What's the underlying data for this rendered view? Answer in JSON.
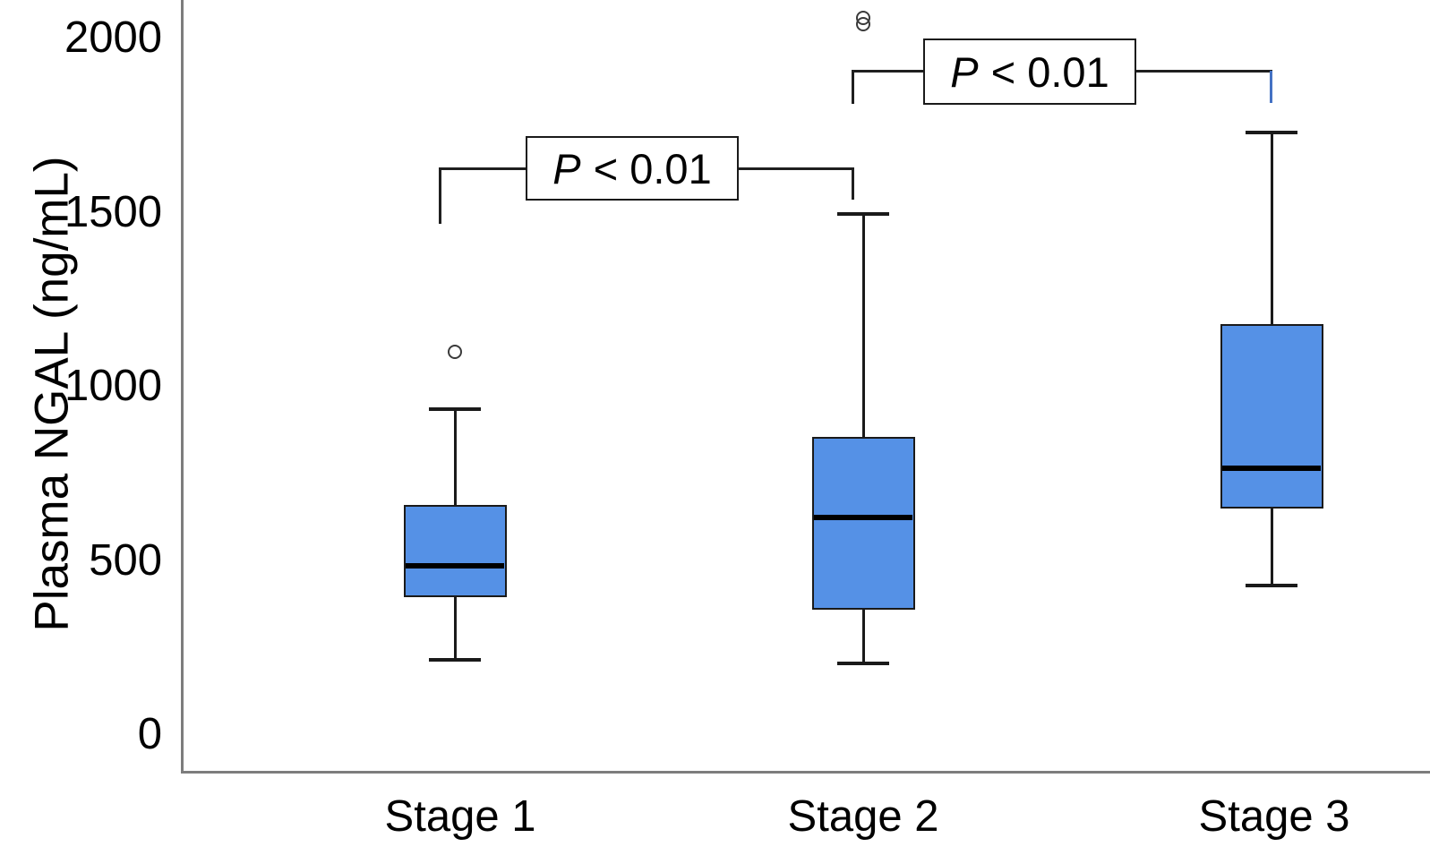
{
  "chart_data": {
    "type": "boxplot",
    "title": "",
    "xlabel": "",
    "ylabel": "Plasma NGAL (ng/mL)",
    "y_unit": "ng/mL",
    "ylim": [
      0,
      2100
    ],
    "y_ticks": [
      2000,
      1500,
      1000,
      500,
      0
    ],
    "grid": false,
    "legend": "none",
    "categories": [
      "Stage 1",
      "Stage 2",
      "Stage 3"
    ],
    "series": [
      {
        "name": "Stage 1",
        "min": 215,
        "q1": 395,
        "median": 485,
        "q3": 660,
        "max": 935,
        "outliers": [
          1100
        ]
      },
      {
        "name": "Stage 2",
        "min": 205,
        "q1": 360,
        "median": 625,
        "q3": 855,
        "max": 1495,
        "outliers": [
          2040,
          2060
        ]
      },
      {
        "name": "Stage 3",
        "min": 430,
        "q1": 650,
        "median": 765,
        "q3": 1180,
        "max": 1730,
        "outliers": []
      }
    ],
    "annotations": [
      {
        "between": [
          "Stage 1",
          "Stage 2"
        ],
        "label_full": "P < 0.01",
        "label_p": "P",
        "label_rest": "< 0.01"
      },
      {
        "between": [
          "Stage 2",
          "Stage 3"
        ],
        "label_full": "P < 0.01",
        "label_p": "P",
        "label_rest": "< 0.01"
      }
    ],
    "colors": {
      "box_fill": "#5591E6",
      "box_stroke": "#1a1a1a",
      "median_line": "#000000",
      "whisker": "#1a1a1a",
      "axis_line": "#7d7d7d",
      "bracket_line": "#1f1f1f",
      "bracket_accent": "#4472C4",
      "text": "#000000",
      "background": "#ffffff"
    }
  }
}
